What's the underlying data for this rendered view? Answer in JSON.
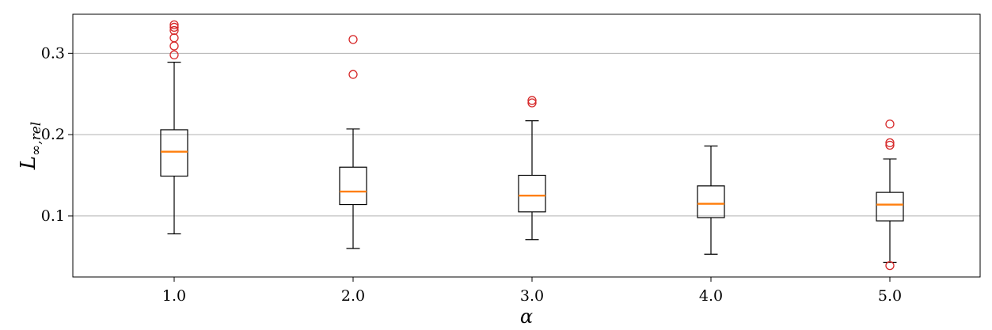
{
  "chart_data": {
    "type": "box",
    "xlabel": "α",
    "ylabel": "L",
    "ylabel_subscript": "∞,rel",
    "categories": [
      "1.0",
      "2.0",
      "3.0",
      "4.0",
      "5.0"
    ],
    "yticks": [
      0.1,
      0.2,
      0.3
    ],
    "ytick_labels": [
      "0.1",
      "0.2",
      "0.3"
    ],
    "ylim": [
      0.025,
      0.348
    ],
    "grid": "y-major",
    "boxes": [
      {
        "category": "1.0",
        "whisker_low": 0.078,
        "q1": 0.149,
        "median": 0.179,
        "q3": 0.206,
        "whisker_high": 0.289,
        "outliers": [
          0.298,
          0.309,
          0.319,
          0.328,
          0.332,
          0.335
        ]
      },
      {
        "category": "2.0",
        "whisker_low": 0.06,
        "q1": 0.114,
        "median": 0.13,
        "q3": 0.16,
        "whisker_high": 0.207,
        "outliers": [
          0.274,
          0.317
        ]
      },
      {
        "category": "3.0",
        "whisker_low": 0.071,
        "q1": 0.105,
        "median": 0.125,
        "q3": 0.15,
        "whisker_high": 0.217,
        "outliers": [
          0.239,
          0.242
        ]
      },
      {
        "category": "4.0",
        "whisker_low": 0.053,
        "q1": 0.098,
        "median": 0.115,
        "q3": 0.137,
        "whisker_high": 0.186,
        "outliers": []
      },
      {
        "category": "5.0",
        "whisker_low": 0.043,
        "q1": 0.094,
        "median": 0.114,
        "q3": 0.129,
        "whisker_high": 0.17,
        "outliers": [
          0.039,
          0.187,
          0.19,
          0.213
        ]
      }
    ],
    "colors": {
      "box": "#000000",
      "median": "#ff7f0e",
      "outlier": "#d62728",
      "grid": "#b0b0b0"
    }
  }
}
